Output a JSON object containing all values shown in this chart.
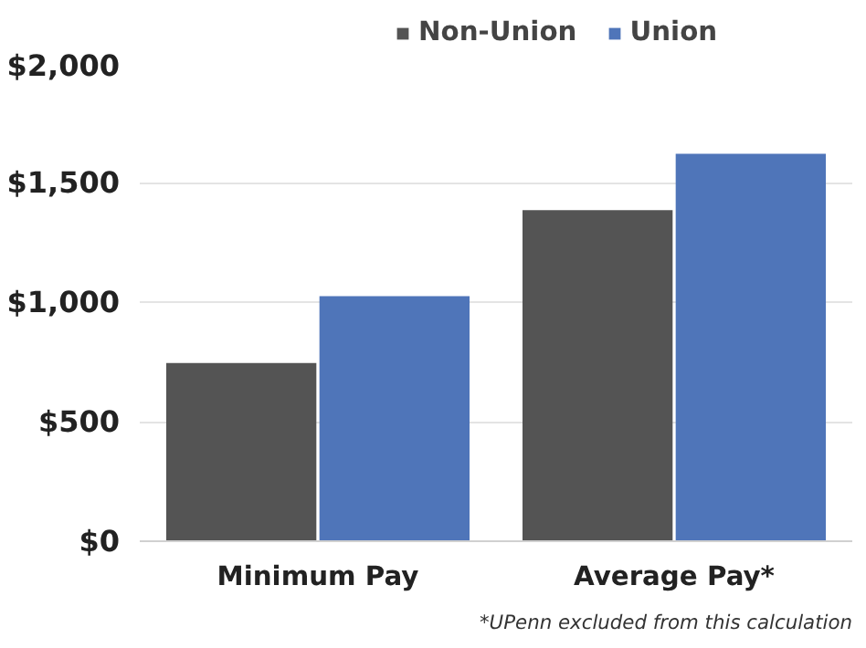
{
  "chart_data": {
    "type": "bar",
    "categories": [
      "Minimum Pay",
      "Average Pay*"
    ],
    "series": [
      {
        "name": "Non-Union",
        "color": "#545454",
        "values": [
          745,
          1385
        ]
      },
      {
        "name": "Union",
        "color": "#4f75b9",
        "values": [
          1025,
          1620
        ]
      }
    ],
    "ylim": [
      0,
      2000
    ],
    "yticks": [
      {
        "value": 0,
        "label": "$0"
      },
      {
        "value": 500,
        "label": "$500"
      },
      {
        "value": 1000,
        "label": "$1,000"
      },
      {
        "value": 1500,
        "label": "$1,500"
      },
      {
        "value": 2000,
        "label": "$2,000"
      }
    ],
    "grid": "y",
    "legend": "top",
    "annotations": [
      "*UPenn excluded from this calculation"
    ]
  }
}
